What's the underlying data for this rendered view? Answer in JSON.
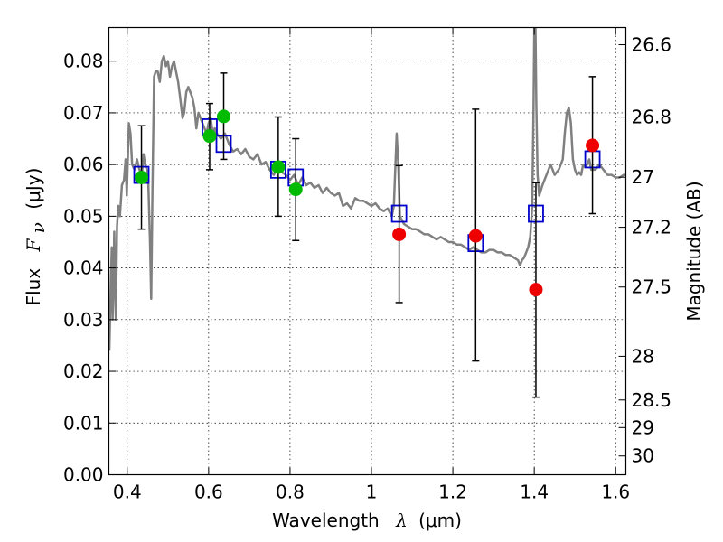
{
  "chart_data": {
    "type": "scatter",
    "xlabel": {
      "text": "Wavelength",
      "symbol": "λ",
      "unit": "(μm)"
    },
    "ylabel": {
      "text": "Flux",
      "symbol": "F",
      "subscript": "ν",
      "unit": "(μJy)"
    },
    "ylabel_right": "Magnitude (AB)",
    "xlim": [
      0.355,
      1.625
    ],
    "ylim": [
      0.0,
      0.0865
    ],
    "grid": true,
    "x_ticks": [
      0.4,
      0.6,
      0.8,
      1.0,
      1.2,
      1.4,
      1.6
    ],
    "x_tick_labels": [
      "0.4",
      "0.6",
      "0.8",
      "1",
      "1.2",
      "1.4",
      "1.6"
    ],
    "y_ticks": [
      0.0,
      0.01,
      0.02,
      0.03,
      0.04,
      0.05,
      0.06,
      0.07,
      0.08
    ],
    "y_tick_labels": [
      "0.00",
      "0.01",
      "0.02",
      "0.03",
      "0.04",
      "0.05",
      "0.06",
      "0.07",
      "0.08"
    ],
    "right_ticks": [
      {
        "mag": 26.6,
        "label": "26.6"
      },
      {
        "mag": 26.8,
        "label": "26.8"
      },
      {
        "mag": 27.0,
        "label": "27"
      },
      {
        "mag": 27.2,
        "label": "27.2"
      },
      {
        "mag": 27.5,
        "label": "27.5"
      },
      {
        "mag": 28.0,
        "label": "28"
      },
      {
        "mag": 28.5,
        "label": "28.5"
      },
      {
        "mag": 29.0,
        "label": "29"
      },
      {
        "mag": 30.0,
        "label": "30"
      }
    ],
    "colors": {
      "sed": "#808080",
      "model": "#0000cc",
      "detected": "#00bb00",
      "undetected": "#ee0000",
      "errorbar": "#000000"
    },
    "series": [
      {
        "kind": "line",
        "points": [
          [
            0.356,
            0.024
          ],
          [
            0.36,
            0.038
          ],
          [
            0.362,
            0.044
          ],
          [
            0.364,
            0.03
          ],
          [
            0.366,
            0.036
          ],
          [
            0.368,
            0.047
          ],
          [
            0.372,
            0.03
          ],
          [
            0.375,
            0.048
          ],
          [
            0.378,
            0.052
          ],
          [
            0.382,
            0.05
          ],
          [
            0.387,
            0.056
          ],
          [
            0.392,
            0.057
          ],
          [
            0.396,
            0.061
          ],
          [
            0.399,
            0.054
          ],
          [
            0.404,
            0.068
          ],
          [
            0.408,
            0.066
          ],
          [
            0.412,
            0.06
          ],
          [
            0.418,
            0.059
          ],
          [
            0.424,
            0.061
          ],
          [
            0.43,
            0.059
          ],
          [
            0.436,
            0.058
          ],
          [
            0.44,
            0.062
          ],
          [
            0.444,
            0.06
          ],
          [
            0.448,
            0.059
          ],
          [
            0.452,
            0.056
          ],
          [
            0.456,
            0.045
          ],
          [
            0.459,
            0.034
          ],
          [
            0.462,
            0.055
          ],
          [
            0.466,
            0.077
          ],
          [
            0.47,
            0.078
          ],
          [
            0.475,
            0.078
          ],
          [
            0.48,
            0.076
          ],
          [
            0.485,
            0.08
          ],
          [
            0.49,
            0.081
          ],
          [
            0.495,
            0.079
          ],
          [
            0.5,
            0.08
          ],
          [
            0.505,
            0.077
          ],
          [
            0.51,
            0.079
          ],
          [
            0.515,
            0.08
          ],
          [
            0.52,
            0.078
          ],
          [
            0.525,
            0.076
          ],
          [
            0.53,
            0.073
          ],
          [
            0.536,
            0.069
          ],
          [
            0.54,
            0.07
          ],
          [
            0.545,
            0.074
          ],
          [
            0.55,
            0.075
          ],
          [
            0.555,
            0.074
          ],
          [
            0.56,
            0.073
          ],
          [
            0.565,
            0.071
          ],
          [
            0.57,
            0.067
          ],
          [
            0.575,
            0.07
          ],
          [
            0.58,
            0.069
          ],
          [
            0.585,
            0.068
          ],
          [
            0.59,
            0.067
          ],
          [
            0.595,
            0.066
          ],
          [
            0.6,
            0.068
          ],
          [
            0.605,
            0.069
          ],
          [
            0.61,
            0.066
          ],
          [
            0.615,
            0.067
          ],
          [
            0.62,
            0.066
          ],
          [
            0.63,
            0.065
          ],
          [
            0.64,
            0.066
          ],
          [
            0.65,
            0.064
          ],
          [
            0.66,
            0.0625
          ],
          [
            0.67,
            0.063
          ],
          [
            0.68,
            0.062
          ],
          [
            0.69,
            0.063
          ],
          [
            0.7,
            0.0615
          ],
          [
            0.71,
            0.061
          ],
          [
            0.72,
            0.062
          ],
          [
            0.73,
            0.06
          ],
          [
            0.74,
            0.0605
          ],
          [
            0.75,
            0.059
          ],
          [
            0.76,
            0.058
          ],
          [
            0.77,
            0.0595
          ],
          [
            0.78,
            0.0585
          ],
          [
            0.79,
            0.058
          ],
          [
            0.8,
            0.057
          ],
          [
            0.81,
            0.058
          ],
          [
            0.82,
            0.056
          ],
          [
            0.83,
            0.0575
          ],
          [
            0.84,
            0.056
          ],
          [
            0.85,
            0.0565
          ],
          [
            0.86,
            0.0555
          ],
          [
            0.87,
            0.056
          ],
          [
            0.88,
            0.0545
          ],
          [
            0.89,
            0.0555
          ],
          [
            0.9,
            0.0545
          ],
          [
            0.91,
            0.054
          ],
          [
            0.92,
            0.0545
          ],
          [
            0.93,
            0.052
          ],
          [
            0.94,
            0.0525
          ],
          [
            0.95,
            0.0515
          ],
          [
            0.96,
            0.0535
          ],
          [
            0.97,
            0.053
          ],
          [
            0.98,
            0.053
          ],
          [
            0.99,
            0.0525
          ],
          [
            1.0,
            0.052
          ],
          [
            1.01,
            0.0525
          ],
          [
            1.02,
            0.0515
          ],
          [
            1.03,
            0.051
          ],
          [
            1.04,
            0.0515
          ],
          [
            1.05,
            0.05
          ],
          [
            1.055,
            0.052
          ],
          [
            1.058,
            0.058
          ],
          [
            1.062,
            0.066
          ],
          [
            1.066,
            0.06
          ],
          [
            1.07,
            0.05
          ],
          [
            1.08,
            0.0485
          ],
          [
            1.09,
            0.048
          ],
          [
            1.1,
            0.0475
          ],
          [
            1.11,
            0.0475
          ],
          [
            1.12,
            0.047
          ],
          [
            1.13,
            0.0465
          ],
          [
            1.14,
            0.0465
          ],
          [
            1.15,
            0.046
          ],
          [
            1.16,
            0.0455
          ],
          [
            1.17,
            0.046
          ],
          [
            1.18,
            0.0455
          ],
          [
            1.19,
            0.045
          ],
          [
            1.2,
            0.045
          ],
          [
            1.21,
            0.0445
          ],
          [
            1.22,
            0.0445
          ],
          [
            1.23,
            0.044
          ],
          [
            1.24,
            0.0435
          ],
          [
            1.25,
            0.044
          ],
          [
            1.26,
            0.0435
          ],
          [
            1.27,
            0.043
          ],
          [
            1.28,
            0.043
          ],
          [
            1.29,
            0.0435
          ],
          [
            1.3,
            0.0435
          ],
          [
            1.31,
            0.043
          ],
          [
            1.32,
            0.043
          ],
          [
            1.33,
            0.0425
          ],
          [
            1.34,
            0.0425
          ],
          [
            1.35,
            0.042
          ],
          [
            1.36,
            0.0415
          ],
          [
            1.365,
            0.0405
          ],
          [
            1.37,
            0.0415
          ],
          [
            1.375,
            0.042
          ],
          [
            1.38,
            0.043
          ],
          [
            1.385,
            0.044
          ],
          [
            1.39,
            0.046
          ],
          [
            1.395,
            0.052
          ],
          [
            1.398,
            0.07
          ],
          [
            1.4,
            0.0865
          ],
          [
            1.403,
            0.0865
          ],
          [
            1.405,
            0.072
          ],
          [
            1.408,
            0.058
          ],
          [
            1.412,
            0.054
          ],
          [
            1.42,
            0.056
          ],
          [
            1.43,
            0.058
          ],
          [
            1.44,
            0.06
          ],
          [
            1.45,
            0.058
          ],
          [
            1.46,
            0.059
          ],
          [
            1.47,
            0.061
          ],
          [
            1.475,
            0.066
          ],
          [
            1.48,
            0.07
          ],
          [
            1.485,
            0.071
          ],
          [
            1.49,
            0.068
          ],
          [
            1.495,
            0.061
          ],
          [
            1.5,
            0.059
          ],
          [
            1.505,
            0.058
          ],
          [
            1.51,
            0.0585
          ],
          [
            1.515,
            0.058
          ],
          [
            1.52,
            0.06
          ],
          [
            1.525,
            0.0595
          ],
          [
            1.53,
            0.06
          ],
          [
            1.535,
            0.061
          ],
          [
            1.54,
            0.059
          ],
          [
            1.55,
            0.059
          ],
          [
            1.56,
            0.06
          ],
          [
            1.57,
            0.059
          ],
          [
            1.58,
            0.058
          ],
          [
            1.59,
            0.058
          ],
          [
            1.6,
            0.0575
          ],
          [
            1.61,
            0.0575
          ],
          [
            1.62,
            0.058
          ],
          [
            1.625,
            0.058
          ]
        ]
      },
      {
        "kind": "open-squares",
        "points": [
          [
            0.435,
            0.058
          ],
          [
            0.6025,
            0.0672
          ],
          [
            0.637,
            0.064
          ],
          [
            0.771,
            0.059
          ],
          [
            0.814,
            0.0575
          ],
          [
            1.068,
            0.0505
          ],
          [
            1.256,
            0.0448
          ],
          [
            1.404,
            0.0505
          ],
          [
            1.543,
            0.061
          ]
        ]
      },
      {
        "kind": "points-with-errors",
        "points": [
          {
            "x": 0.435,
            "y": 0.0575,
            "lo": 0.0475,
            "hi": 0.0675
          },
          {
            "x": 0.6025,
            "y": 0.0655,
            "lo": 0.059,
            "hi": 0.0718
          },
          {
            "x": 0.637,
            "y": 0.0693,
            "lo": 0.061,
            "hi": 0.0777
          },
          {
            "x": 0.771,
            "y": 0.0595,
            "lo": 0.05,
            "hi": 0.0692
          },
          {
            "x": 0.814,
            "y": 0.0552,
            "lo": 0.0453,
            "hi": 0.065
          }
        ]
      },
      {
        "kind": "points-with-errors",
        "points": [
          {
            "x": 1.068,
            "y": 0.0465,
            "lo": 0.0333,
            "hi": 0.0598
          },
          {
            "x": 1.256,
            "y": 0.0462,
            "lo": 0.022,
            "hi": 0.0707
          },
          {
            "x": 1.404,
            "y": 0.0358,
            "lo": 0.015,
            "hi": 0.0565
          },
          {
            "x": 1.543,
            "y": 0.0637,
            "lo": 0.0505,
            "hi": 0.077
          }
        ]
      }
    ]
  }
}
